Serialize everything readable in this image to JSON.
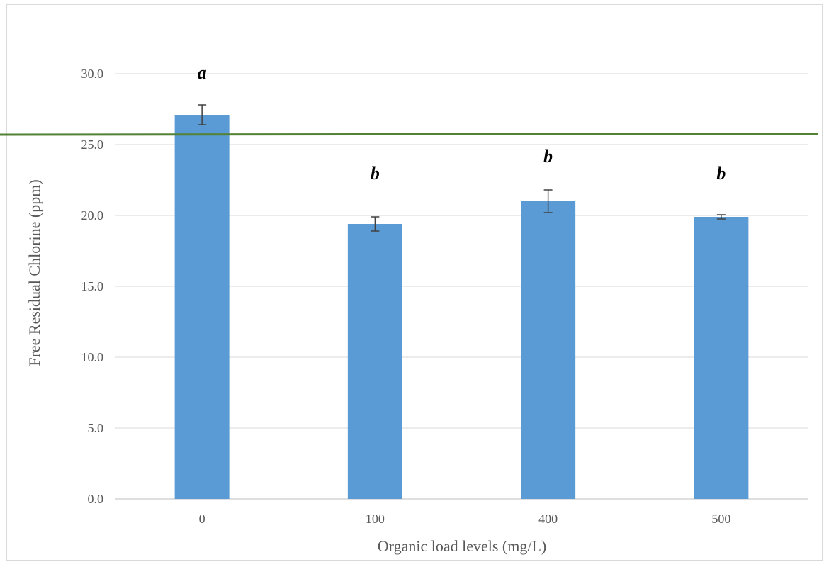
{
  "chart_data": {
    "type": "bar",
    "title": "",
    "xlabel": "Organic load levels (mg/L)",
    "ylabel": "Free Residual Chlorine (ppm)",
    "categories": [
      "0",
      "100",
      "400",
      "500"
    ],
    "values": [
      27.1,
      19.4,
      21.0,
      19.9
    ],
    "error": [
      0.7,
      0.5,
      0.8,
      0.15
    ],
    "significance_letters": [
      "a",
      "b",
      "b",
      "b"
    ],
    "ylim": [
      0,
      30
    ],
    "yticks": [
      0,
      5,
      10,
      15,
      20,
      25,
      30
    ],
    "ytick_labels": [
      "0.0",
      "5.0",
      "10.0",
      "15.0",
      "20.0",
      "25.0",
      "30.0"
    ],
    "reference_line": {
      "y_start": 25.7,
      "y_end": 25.75,
      "color": "#548235"
    },
    "grid": true,
    "legend": "none",
    "bar_color": "#5b9bd5",
    "error_bar_color": "#404040",
    "grid_color": "#d9d9d9"
  }
}
